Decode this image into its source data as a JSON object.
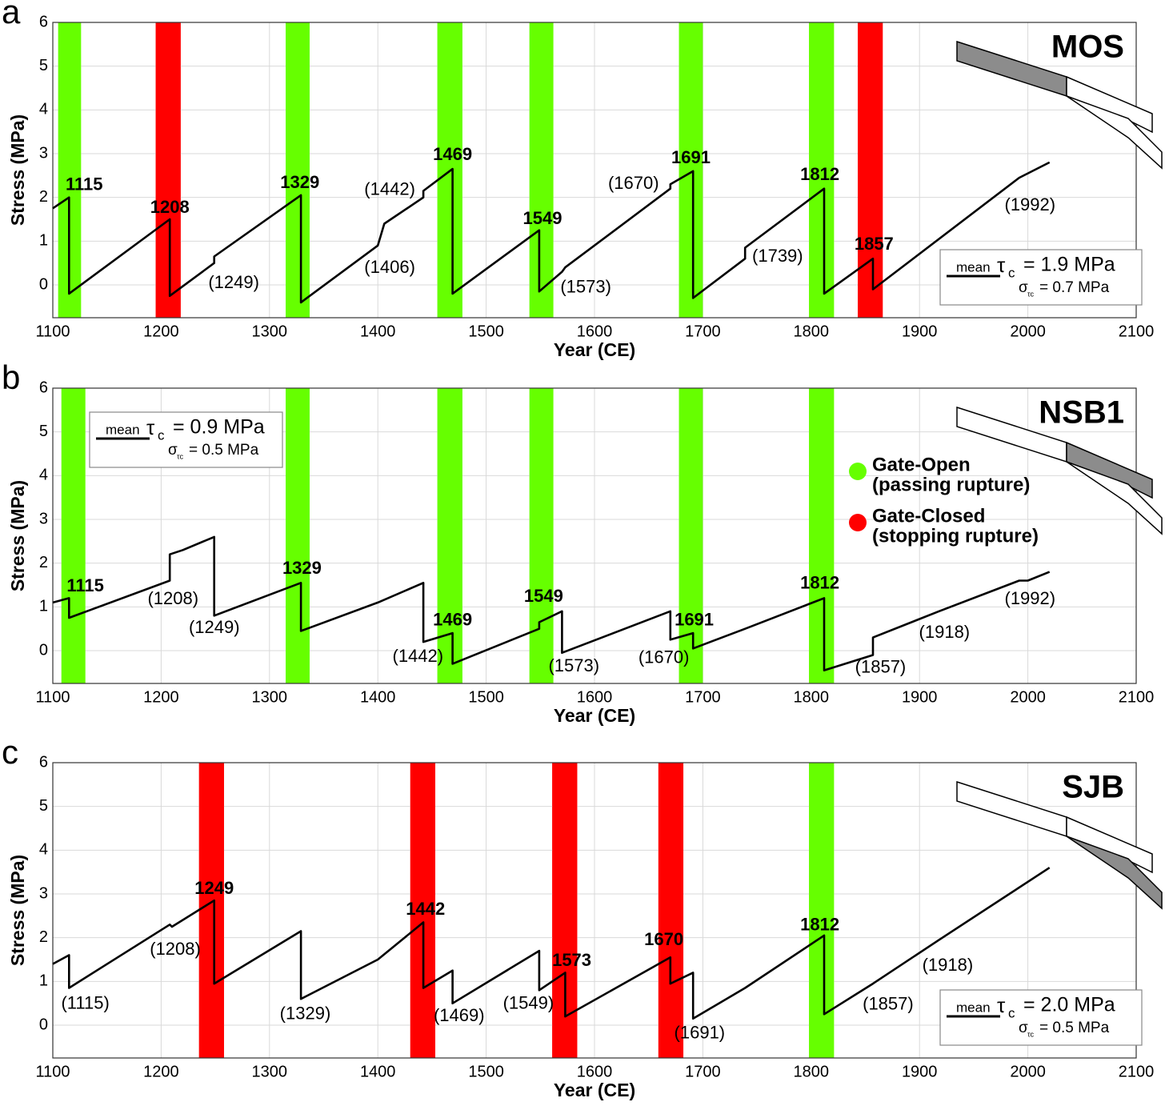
{
  "chart_data": [
    {
      "type": "line",
      "panel_label": "a",
      "title": "MOS",
      "xlabel": "Year (CE)",
      "ylabel": "Stress (MPa)",
      "xlim": [
        1100,
        2100
      ],
      "ylim": [
        -0.75,
        6
      ],
      "xticks": [
        1100,
        1200,
        1300,
        1400,
        1500,
        1600,
        1700,
        1800,
        1900,
        2000,
        2100
      ],
      "yticks": [
        0,
        1,
        2,
        3,
        4,
        5,
        6
      ],
      "grid": true,
      "bands": [
        {
          "start": 1105,
          "end": 1126,
          "color": "#66ff00"
        },
        {
          "start": 1195,
          "end": 1218,
          "color": "#ff0000"
        },
        {
          "start": 1315,
          "end": 1337,
          "color": "#66ff00"
        },
        {
          "start": 1455,
          "end": 1478,
          "color": "#66ff00"
        },
        {
          "start": 1540,
          "end": 1562,
          "color": "#66ff00"
        },
        {
          "start": 1678,
          "end": 1700,
          "color": "#66ff00"
        },
        {
          "start": 1798,
          "end": 1821,
          "color": "#66ff00"
        },
        {
          "start": 1843,
          "end": 1866,
          "color": "#ff0000"
        }
      ],
      "line": {
        "color": "#000000",
        "x": [
          1100,
          1115,
          1115,
          1208,
          1208,
          1249,
          1249,
          1329,
          1329,
          1400,
          1406,
          1442,
          1442,
          1469,
          1469,
          1549,
          1549,
          1570,
          1573,
          1670,
          1670,
          1691,
          1691,
          1739,
          1739,
          1812,
          1812,
          1857,
          1857,
          1992,
          2020
        ],
        "y": [
          1.75,
          2.0,
          -0.2,
          1.5,
          -0.25,
          0.5,
          0.65,
          2.05,
          -0.4,
          0.9,
          1.4,
          2.0,
          2.15,
          2.65,
          -0.2,
          1.25,
          -0.15,
          0.3,
          0.4,
          2.2,
          2.3,
          2.6,
          -0.3,
          0.6,
          0.85,
          2.2,
          -0.2,
          0.6,
          -0.1,
          2.45,
          2.8
        ]
      },
      "annotations": [
        {
          "text": "1115",
          "x": 1129,
          "y": 2.27,
          "bold": true
        },
        {
          "text": "1208",
          "x": 1208,
          "y": 1.75,
          "bold": true
        },
        {
          "text": "(1249)",
          "x": 1267,
          "y": 0.03,
          "bold": false
        },
        {
          "text": "1329",
          "x": 1328,
          "y": 2.32,
          "bold": true
        },
        {
          "text": "(1406)",
          "x": 1411,
          "y": 0.38,
          "bold": false
        },
        {
          "text": "(1442)",
          "x": 1411,
          "y": 2.16,
          "bold": false
        },
        {
          "text": "1469",
          "x": 1469,
          "y": 2.96,
          "bold": true
        },
        {
          "text": "1549",
          "x": 1552,
          "y": 1.5,
          "bold": true
        },
        {
          "text": "(1573)",
          "x": 1592,
          "y": -0.07,
          "bold": false
        },
        {
          "text": "(1670)",
          "x": 1636,
          "y": 2.3,
          "bold": false
        },
        {
          "text": "1691",
          "x": 1689,
          "y": 2.89,
          "bold": true
        },
        {
          "text": "(1739)",
          "x": 1769,
          "y": 0.64,
          "bold": false
        },
        {
          "text": "1812",
          "x": 1808,
          "y": 2.5,
          "bold": true
        },
        {
          "text": "1857",
          "x": 1858,
          "y": 0.91,
          "bold": true
        },
        {
          "text": "(1992)",
          "x": 2002,
          "y": 1.81,
          "bold": false
        }
      ],
      "stats_box": {
        "position": "lower-right",
        "mean_label": "mean",
        "tau": "τ",
        "tau_sub": "c",
        "mean_value": "= 1.9 MPa",
        "sigma": "σ",
        "sigma_sub": "τc",
        "sigma_value": "= 0.7 MPa"
      }
    },
    {
      "type": "line",
      "panel_label": "b",
      "title": "NSB1",
      "xlabel": "Year (CE)",
      "ylabel": "Stress (MPa)",
      "xlim": [
        1100,
        2100
      ],
      "ylim": [
        -0.75,
        6
      ],
      "xticks": [
        1100,
        1200,
        1300,
        1400,
        1500,
        1600,
        1700,
        1800,
        1900,
        2000,
        2100
      ],
      "yticks": [
        0,
        1,
        2,
        3,
        4,
        5,
        6
      ],
      "grid": true,
      "bands": [
        {
          "start": 1108,
          "end": 1130,
          "color": "#66ff00"
        },
        {
          "start": 1315,
          "end": 1337,
          "color": "#66ff00"
        },
        {
          "start": 1455,
          "end": 1478,
          "color": "#66ff00"
        },
        {
          "start": 1540,
          "end": 1562,
          "color": "#66ff00"
        },
        {
          "start": 1678,
          "end": 1700,
          "color": "#66ff00"
        },
        {
          "start": 1798,
          "end": 1821,
          "color": "#66ff00"
        }
      ],
      "line": {
        "color": "#000000",
        "x": [
          1100,
          1115,
          1115,
          1208,
          1208,
          1220,
          1249,
          1249,
          1329,
          1329,
          1400,
          1442,
          1442,
          1469,
          1469,
          1549,
          1549,
          1570,
          1570,
          1670,
          1670,
          1691,
          1691,
          1739,
          1812,
          1812,
          1857,
          1857,
          1918,
          1992,
          2000,
          2020
        ],
        "y": [
          1.1,
          1.2,
          0.75,
          1.6,
          2.2,
          2.3,
          2.6,
          0.8,
          1.55,
          0.45,
          1.1,
          1.55,
          0.2,
          0.4,
          -0.3,
          0.5,
          0.65,
          0.9,
          -0.05,
          0.9,
          0.25,
          0.4,
          0.05,
          0.5,
          1.2,
          -0.45,
          -0.1,
          0.3,
          0.9,
          1.6,
          1.6,
          1.8
        ]
      },
      "annotations": [
        {
          "text": "1115",
          "x": 1130,
          "y": 1.46,
          "bold": true
        },
        {
          "text": "(1208)",
          "x": 1211,
          "y": 1.17,
          "bold": false
        },
        {
          "text": "(1249)",
          "x": 1249,
          "y": 0.51,
          "bold": false
        },
        {
          "text": "1329",
          "x": 1330,
          "y": 1.86,
          "bold": true
        },
        {
          "text": "1469",
          "x": 1469,
          "y": 0.68,
          "bold": true
        },
        {
          "text": "(1442)",
          "x": 1437,
          "y": -0.15,
          "bold": false
        },
        {
          "text": "1549",
          "x": 1553,
          "y": 1.22,
          "bold": true
        },
        {
          "text": "(1573)",
          "x": 1581,
          "y": -0.37,
          "bold": false
        },
        {
          "text": "(1670)",
          "x": 1664,
          "y": -0.18,
          "bold": false
        },
        {
          "text": "1691",
          "x": 1692,
          "y": 0.68,
          "bold": true
        },
        {
          "text": "1812",
          "x": 1808,
          "y": 1.52,
          "bold": true
        },
        {
          "text": "(1857)",
          "x": 1864,
          "y": -0.4,
          "bold": false
        },
        {
          "text": "(1918)",
          "x": 1923,
          "y": 0.4,
          "bold": false
        },
        {
          "text": "(1992)",
          "x": 2002,
          "y": 1.17,
          "bold": false
        }
      ],
      "stats_box": {
        "position": "upper-left",
        "mean_label": "mean",
        "tau": "τ",
        "tau_sub": "c",
        "mean_value": "= 0.9 MPa",
        "sigma": "σ",
        "sigma_sub": "τc",
        "sigma_value": "= 0.5 MPa"
      },
      "legend": [
        {
          "label": "Gate-Open",
          "sublabel": "(passing rupture)",
          "color": "#66ff00"
        },
        {
          "label": "Gate-Closed",
          "sublabel": "(stopping rupture)",
          "color": "#ff0000"
        }
      ]
    },
    {
      "type": "line",
      "panel_label": "c",
      "title": "SJB",
      "xlabel": "Year (CE)",
      "ylabel": "Stress (MPa)",
      "xlim": [
        1100,
        2100
      ],
      "ylim": [
        -0.75,
        6
      ],
      "xticks": [
        1100,
        1200,
        1300,
        1400,
        1500,
        1600,
        1700,
        1800,
        1900,
        2000,
        2100
      ],
      "yticks": [
        0,
        1,
        2,
        3,
        4,
        5,
        6
      ],
      "grid": true,
      "bands": [
        {
          "start": 1235,
          "end": 1258,
          "color": "#ff0000"
        },
        {
          "start": 1430,
          "end": 1453,
          "color": "#ff0000"
        },
        {
          "start": 1561,
          "end": 1584,
          "color": "#ff0000"
        },
        {
          "start": 1659,
          "end": 1682,
          "color": "#ff0000"
        },
        {
          "start": 1798,
          "end": 1821,
          "color": "#66ff00"
        }
      ],
      "line": {
        "color": "#000000",
        "x": [
          1100,
          1115,
          1115,
          1208,
          1210,
          1249,
          1249,
          1329,
          1329,
          1400,
          1442,
          1442,
          1469,
          1469,
          1549,
          1549,
          1573,
          1573,
          1670,
          1670,
          1691,
          1691,
          1739,
          1812,
          1812,
          1857,
          1918,
          2020
        ],
        "y": [
          1.4,
          1.6,
          0.85,
          2.3,
          2.25,
          2.85,
          0.95,
          2.15,
          0.6,
          1.5,
          2.35,
          0.85,
          1.25,
          0.5,
          1.7,
          0.8,
          1.2,
          0.2,
          1.55,
          0.95,
          1.2,
          0.15,
          0.85,
          2.05,
          0.25,
          0.95,
          1.95,
          3.6
        ]
      },
      "annotations": [
        {
          "text": "1249",
          "x": 1249,
          "y": 3.11,
          "bold": true
        },
        {
          "text": "(1208)",
          "x": 1213,
          "y": 1.72,
          "bold": false
        },
        {
          "text": "(1115)",
          "x": 1130,
          "y": 0.48,
          "bold": false
        },
        {
          "text": "(1329)",
          "x": 1333,
          "y": 0.24,
          "bold": false
        },
        {
          "text": "1442",
          "x": 1444,
          "y": 2.63,
          "bold": true
        },
        {
          "text": "(1469)",
          "x": 1475,
          "y": 0.2,
          "bold": false
        },
        {
          "text": "(1549)",
          "x": 1539,
          "y": 0.48,
          "bold": false
        },
        {
          "text": "1573",
          "x": 1579,
          "y": 1.46,
          "bold": true
        },
        {
          "text": "1670",
          "x": 1664,
          "y": 1.94,
          "bold": true
        },
        {
          "text": "(1691)",
          "x": 1697,
          "y": -0.2,
          "bold": false
        },
        {
          "text": "1812",
          "x": 1808,
          "y": 2.27,
          "bold": true
        },
        {
          "text": "(1857)",
          "x": 1871,
          "y": 0.46,
          "bold": false
        },
        {
          "text": "(1918)",
          "x": 1926,
          "y": 1.35,
          "bold": false
        }
      ],
      "stats_box": {
        "position": "lower-right",
        "mean_label": "mean",
        "tau": "τ",
        "tau_sub": "c",
        "mean_value": "= 2.0 MPa",
        "sigma": "σ",
        "sigma_sub": "τc",
        "sigma_value": "= 0.5 MPa"
      }
    }
  ]
}
